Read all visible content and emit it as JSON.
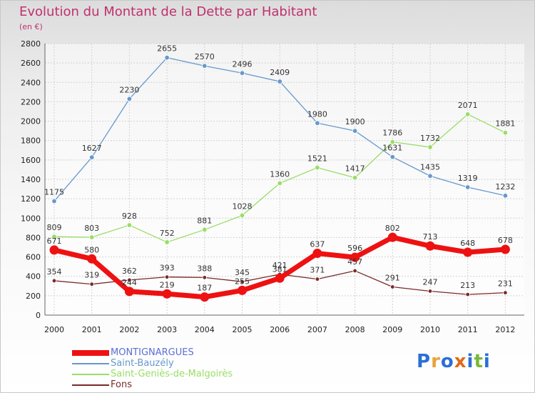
{
  "chart_data": {
    "type": "line",
    "title": "Evolution du Montant de la Dette par Habitant",
    "subtitle": "(en €)",
    "xlabel": "",
    "ylabel": "",
    "ylim": [
      0,
      2800
    ],
    "yticks": [
      0,
      200,
      400,
      600,
      800,
      1000,
      1200,
      1400,
      1600,
      1800,
      2000,
      2200,
      2400,
      2600,
      2800
    ],
    "x": [
      "2000",
      "2001",
      "2002",
      "2003",
      "2004",
      "2005",
      "2006",
      "2007",
      "2008",
      "2009",
      "2010",
      "2011",
      "2012"
    ],
    "grid": true,
    "legend_position": "bottom-left",
    "series": [
      {
        "name": "Fons",
        "color": "#7a2a2a",
        "values": [
          354,
          319,
          362,
          393,
          388,
          345,
          421,
          371,
          457,
          291,
          247,
          213,
          231
        ]
      },
      {
        "name": "Saint-Geniès-de-Malgoirès",
        "color": "#99dd66",
        "values": [
          809,
          803,
          928,
          752,
          881,
          1028,
          1360,
          1521,
          1417,
          1786,
          1732,
          2071,
          1881
        ]
      },
      {
        "name": "Saint-Bauzély",
        "color": "#6699cc",
        "values": [
          1175,
          1627,
          2230,
          2655,
          2570,
          2496,
          2409,
          1980,
          1900,
          1631,
          1435,
          1319,
          1232
        ]
      },
      {
        "name": "MONTIGNARGUES",
        "color": "#ee1111",
        "values": [
          671,
          580,
          244,
          219,
          187,
          255,
          381,
          637,
          596,
          802,
          713,
          648,
          678
        ]
      }
    ]
  },
  "logo_text": [
    "P",
    "r",
    "o",
    "x",
    "i",
    "t",
    "i"
  ],
  "logo_colors": [
    "#2a6fd6",
    "#e8a33c",
    "#2a6fd6",
    "#e06a1a",
    "#2a6fd6",
    "#7ab83a",
    "#2a6fd6"
  ]
}
